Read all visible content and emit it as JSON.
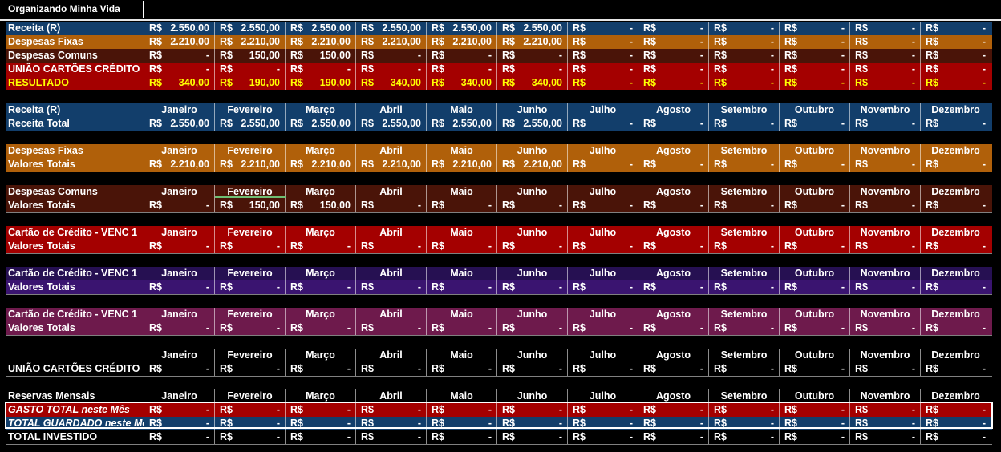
{
  "title": "Organizando Minha Vida",
  "currency": "R$",
  "dash": "-",
  "summary": [
    {
      "label": "Receita (R)",
      "bg": "#123E6B",
      "fg": "#ffffff",
      "values": [
        "2.550,00",
        "2.550,00",
        "2.550,00",
        "2.550,00",
        "2.550,00",
        "2.550,00",
        "-",
        "-",
        "-",
        "-",
        "-",
        "-"
      ]
    },
    {
      "label": "Despesas Fixas",
      "bg": "#B0600A",
      "fg": "#ffffff",
      "values": [
        "2.210,00",
        "2.210,00",
        "2.210,00",
        "2.210,00",
        "2.210,00",
        "2.210,00",
        "-",
        "-",
        "-",
        "-",
        "-",
        "-"
      ]
    },
    {
      "label": "Despesas Comuns",
      "bg": "#4A1408",
      "fg": "#ffffff",
      "values": [
        "-",
        "150,00",
        "150,00",
        "-",
        "-",
        "-",
        "-",
        "-",
        "-",
        "-",
        "-",
        "-"
      ]
    },
    {
      "label": "UNIÃO CARTÕES CRÉDITO",
      "bg": "#A40000",
      "fg": "#ffffff",
      "values": [
        "-",
        "-",
        "-",
        "-",
        "-",
        "-",
        "-",
        "-",
        "-",
        "-",
        "-",
        "-"
      ]
    },
    {
      "label": "RESULTADO",
      "bg": "#A40000",
      "fg": "#FFFF00",
      "values": [
        "340,00",
        "190,00",
        "190,00",
        "340,00",
        "340,00",
        "340,00",
        "-",
        "-",
        "-",
        "-",
        "-",
        "-"
      ]
    }
  ],
  "months": [
    "Janeiro",
    "Fevereiro",
    "Março",
    "Abril",
    "Maio",
    "Junho",
    "Julho",
    "Agosto",
    "Setembro",
    "Outubro",
    "Novembro",
    "Dezembro"
  ],
  "sections": [
    {
      "header": "Receita (R)",
      "bg": "#123E6B",
      "rows": [
        {
          "label": "Receita Total",
          "values": [
            "2.550,00",
            "2.550,00",
            "2.550,00",
            "2.550,00",
            "2.550,00",
            "2.550,00",
            "-",
            "-",
            "-",
            "-",
            "-",
            "-"
          ]
        }
      ]
    },
    {
      "header": "Despesas Fixas",
      "bg": "#B0600A",
      "rows": [
        {
          "label": "Valores Totais",
          "values": [
            "2.210,00",
            "2.210,00",
            "2.210,00",
            "2.210,00",
            "2.210,00",
            "2.210,00",
            "-",
            "-",
            "-",
            "-",
            "-",
            "-"
          ]
        }
      ]
    },
    {
      "header": "Despesas Comuns",
      "bg": "#4A1408",
      "rows": [
        {
          "label": "Valores Totais",
          "values": [
            "-",
            "150,00",
            "150,00",
            "-",
            "-",
            "-",
            "-",
            "-",
            "-",
            "-",
            "-",
            "-"
          ]
        }
      ]
    },
    {
      "header": "Cartão de Crédito - VENC 1",
      "bg": "#A40000",
      "rows": [
        {
          "label": "Valores Totais",
          "values": [
            "-",
            "-",
            "-",
            "-",
            "-",
            "-",
            "-",
            "-",
            "-",
            "-",
            "-",
            "-"
          ]
        }
      ]
    },
    {
      "header": "Cartão de Crédito - VENC 1",
      "bg": "#3A1470",
      "bgHeader": "#261052",
      "rows": [
        {
          "label": "Valores Totais",
          "values": [
            "-",
            "-",
            "-",
            "-",
            "-",
            "-",
            "-",
            "-",
            "-",
            "-",
            "-",
            "-"
          ]
        }
      ]
    },
    {
      "header": "Cartão de Crédito - VENC 1",
      "bg": "#6E1A4C",
      "rows": [
        {
          "label": "Valores Totais",
          "values": [
            "-",
            "-",
            "-",
            "-",
            "-",
            "-",
            "-",
            "-",
            "-",
            "-",
            "-",
            "-"
          ]
        }
      ]
    },
    {
      "header": "",
      "bg": "#000000",
      "rows": [
        {
          "label": "UNIÃO CARTÕES CRÉDITO",
          "values": [
            "-",
            "-",
            "-",
            "-",
            "-",
            "-",
            "-",
            "-",
            "-",
            "-",
            "-",
            "-"
          ]
        }
      ]
    },
    {
      "header": "Reservas Mensais",
      "bg": "#000000",
      "rows": [
        {
          "label": "GASTO TOTAL neste Mês",
          "bg": "#A40000",
          "italic": true,
          "values": [
            "-",
            "-",
            "-",
            "-",
            "-",
            "-",
            "-",
            "-",
            "-",
            "-",
            "-",
            "-"
          ]
        },
        {
          "label": "TOTAL GUARDADO neste Mês",
          "bg": "#123E6B",
          "italic": true,
          "values": [
            "-",
            "-",
            "-",
            "-",
            "-",
            "-",
            "-",
            "-",
            "-",
            "-",
            "-",
            "-"
          ]
        },
        {
          "label": "TOTAL INVESTIDO",
          "bg": "#000000",
          "italic": false,
          "values": [
            "-",
            "-",
            "-",
            "-",
            "-",
            "-",
            "-",
            "-",
            "-",
            "-",
            "-",
            "-"
          ]
        }
      ]
    }
  ]
}
